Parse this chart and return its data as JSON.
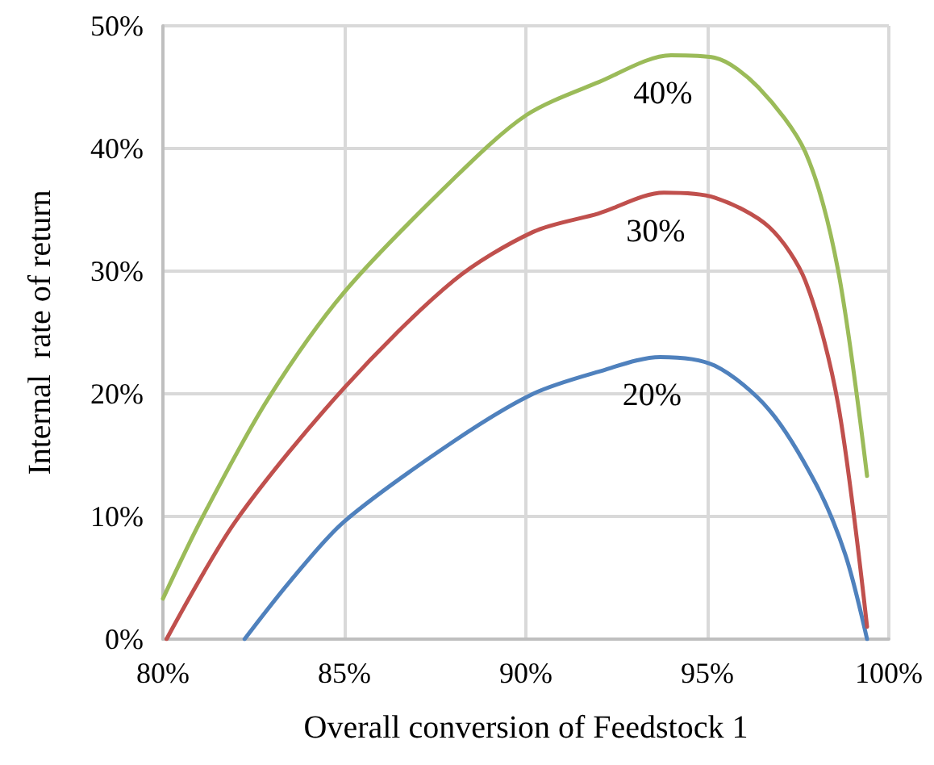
{
  "chart_data": {
    "type": "line",
    "xlabel": "Overall conversion of Feedstock 1",
    "ylabel": "Internal  rate of return",
    "xlim": [
      80,
      100
    ],
    "xticks": [
      {
        "value": 80,
        "label": "80%"
      },
      {
        "value": 85,
        "label": "85%"
      },
      {
        "value": 90,
        "label": "90%"
      },
      {
        "value": 95,
        "label": "95%"
      },
      {
        "value": 100,
        "label": "100%"
      }
    ],
    "ylim": [
      0,
      50
    ],
    "yticks": [
      {
        "value": 0,
        "label": "0%"
      },
      {
        "value": 10,
        "label": "10%"
      },
      {
        "value": 20,
        "label": "20%"
      },
      {
        "value": 30,
        "label": "30%"
      },
      {
        "value": 40,
        "label": "40%"
      },
      {
        "value": 50,
        "label": "50%"
      }
    ],
    "grid": true,
    "legend": false,
    "marker": "none",
    "line_style": "solid",
    "series": [
      {
        "name": "20%",
        "color": "#4f81bd",
        "x": [
          82.25,
          83.5,
          85,
          88,
          90.2,
          92,
          93.7,
          95.2,
          96.7,
          98,
          98.8,
          99.4
        ],
        "values": [
          0,
          4.7,
          9.6,
          16.1,
          20,
          21.8,
          23,
          22.3,
          18.7,
          12.6,
          6.9,
          0
        ]
      },
      {
        "name": "30%",
        "color": "#c0504d",
        "x": [
          80.1,
          82,
          85,
          88,
          90.2,
          92,
          93.8,
          95.2,
          96.7,
          97.7,
          98.6,
          99.4
        ],
        "values": [
          0,
          9.6,
          20.5,
          29.2,
          33.2,
          34.7,
          36.4,
          36,
          33.6,
          29.2,
          19.2,
          1
        ]
      },
      {
        "name": "40%",
        "color": "#9bbb59",
        "x": [
          80,
          81.1,
          82.9,
          85,
          88,
          90,
          92,
          94,
          95.2,
          96.4,
          97.7,
          98.6,
          99.4
        ],
        "values": [
          3.3,
          10,
          19.6,
          28.3,
          37.5,
          42.7,
          45.4,
          47.6,
          47.4,
          45,
          39.7,
          30.1,
          13.3
        ]
      }
    ]
  }
}
